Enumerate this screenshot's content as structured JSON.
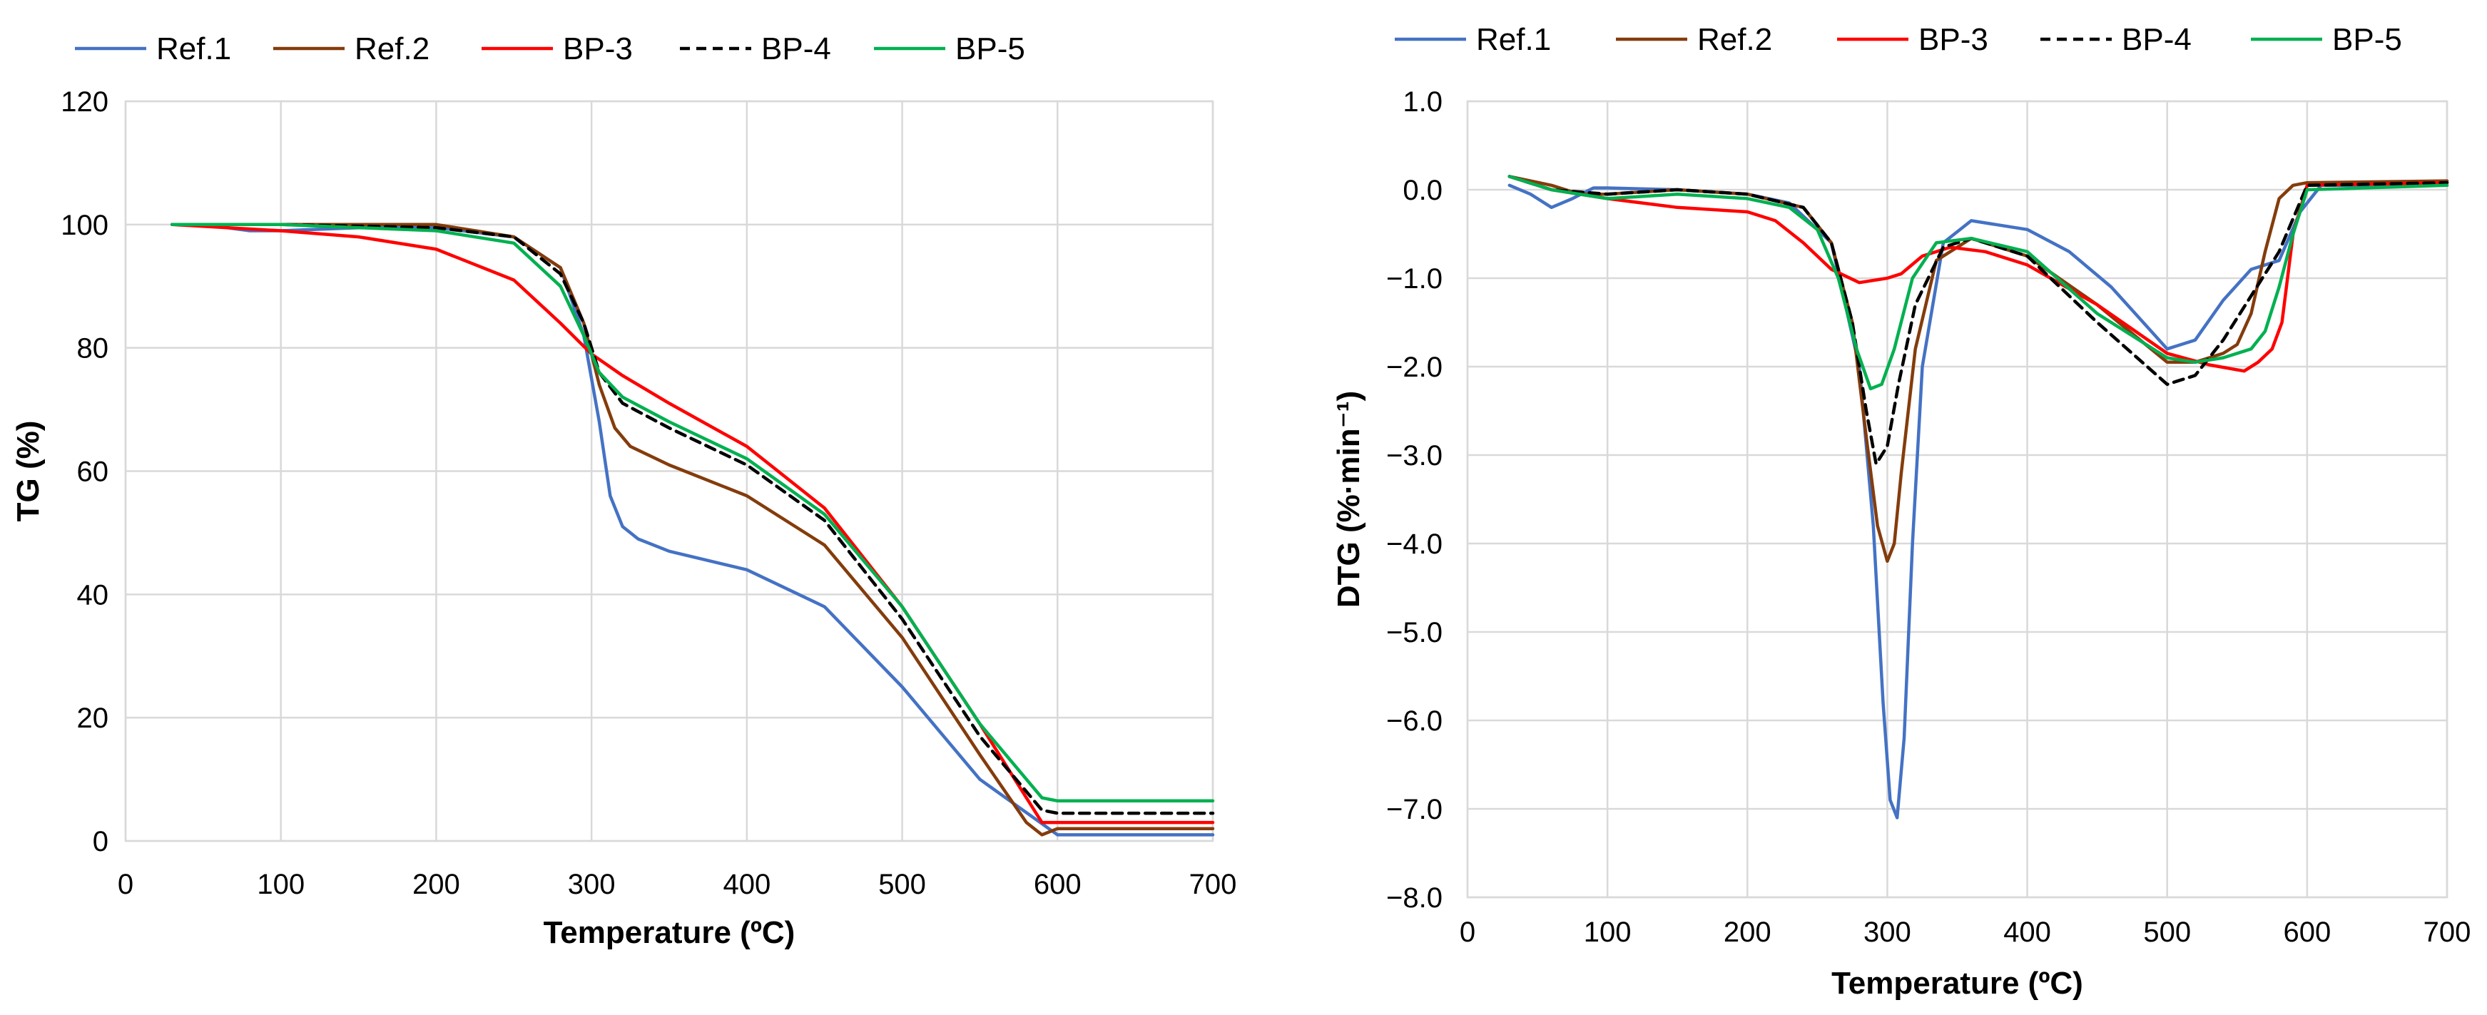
{
  "chart_data": [
    {
      "type": "line",
      "title": "",
      "xlabel": "Temperature (ºC)",
      "ylabel": "TG (%)",
      "xlim": [
        0,
        700
      ],
      "ylim": [
        0,
        120
      ],
      "xticks": [
        0,
        100,
        200,
        300,
        400,
        500,
        600,
        700
      ],
      "yticks": [
        0,
        20,
        40,
        60,
        80,
        100,
        120
      ],
      "grid": true,
      "legend_position": "top",
      "series": [
        {
          "name": "Ref.1",
          "color": "#4472c4",
          "dash": "solid",
          "x": [
            30,
            50,
            80,
            100,
            150,
            200,
            250,
            280,
            295,
            305,
            312,
            320,
            330,
            350,
            400,
            450,
            500,
            550,
            600,
            700
          ],
          "y": [
            100,
            100,
            99,
            99,
            99.5,
            99.5,
            98,
            93,
            82,
            68,
            56,
            51,
            49,
            47,
            44,
            38,
            25,
            10,
            1,
            1
          ]
        },
        {
          "name": "Ref.2",
          "color": "#843c0c",
          "dash": "solid",
          "x": [
            30,
            100,
            150,
            200,
            250,
            280,
            295,
            305,
            315,
            325,
            350,
            400,
            450,
            500,
            550,
            580,
            590,
            600,
            700
          ],
          "y": [
            100,
            100,
            100,
            100,
            98,
            93,
            84,
            74,
            67,
            64,
            61,
            56,
            48,
            33,
            14,
            3,
            1,
            2,
            2
          ]
        },
        {
          "name": "BP-3",
          "color": "#ff0000",
          "dash": "solid",
          "x": [
            30,
            100,
            150,
            200,
            250,
            280,
            300,
            320,
            350,
            400,
            450,
            500,
            550,
            590,
            600,
            700
          ],
          "y": [
            100,
            99,
            98,
            96,
            91,
            84,
            79,
            75.5,
            71,
            64,
            54,
            38,
            19,
            3,
            3,
            3
          ]
        },
        {
          "name": "BP-4",
          "color": "#000000",
          "dash": "dashed",
          "x": [
            30,
            100,
            200,
            250,
            280,
            295,
            305,
            320,
            350,
            400,
            450,
            500,
            550,
            590,
            600,
            700
          ],
          "y": [
            100,
            100,
            99.5,
            98,
            92,
            84,
            76,
            71,
            67,
            61,
            52,
            36,
            17,
            5,
            4.5,
            4.5
          ]
        },
        {
          "name": "BP-5",
          "color": "#00b050",
          "dash": "solid",
          "x": [
            30,
            100,
            150,
            200,
            250,
            280,
            295,
            305,
            320,
            350,
            400,
            450,
            500,
            550,
            590,
            600,
            700
          ],
          "y": [
            100,
            100,
            99.5,
            99,
            97,
            90,
            82,
            76,
            72,
            68,
            62,
            53,
            38,
            19,
            7,
            6.5,
            6.5
          ]
        }
      ]
    },
    {
      "type": "line",
      "title": "",
      "xlabel": "Temperature (ºC)",
      "ylabel": "DTG (%·min⁻¹)",
      "xlim": [
        0,
        700
      ],
      "ylim": [
        -8,
        1
      ],
      "xticks": [
        0,
        100,
        200,
        300,
        400,
        500,
        600,
        700
      ],
      "yticks": [
        1,
        0,
        -1,
        -2,
        -3,
        -4,
        -5,
        -6,
        -7,
        -8
      ],
      "ytick_labels": [
        "1.0",
        "0.0",
        "−1.0",
        "−2.0",
        "−3.0",
        "−4.0",
        "−5.0",
        "−6.0",
        "−7.0",
        "−8.0"
      ],
      "grid": true,
      "legend_position": "top",
      "series": [
        {
          "name": "Ref.1",
          "color": "#4472c4",
          "dash": "solid",
          "x": [
            30,
            45,
            60,
            75,
            90,
            100,
            150,
            200,
            230,
            260,
            280,
            290,
            297,
            302,
            307,
            312,
            318,
            325,
            340,
            360,
            400,
            430,
            460,
            480,
            500,
            520,
            540,
            560,
            580,
            595,
            610,
            700
          ],
          "y": [
            0.05,
            -0.05,
            -0.2,
            -0.1,
            0.02,
            0.02,
            0,
            -0.05,
            -0.15,
            -0.6,
            -2.0,
            -3.8,
            -5.8,
            -6.9,
            -7.1,
            -6.2,
            -4.0,
            -2.0,
            -0.6,
            -0.35,
            -0.45,
            -0.7,
            -1.1,
            -1.45,
            -1.8,
            -1.7,
            -1.25,
            -0.9,
            -0.8,
            -0.25,
            0.05,
            0.05
          ]
        },
        {
          "name": "Ref.2",
          "color": "#843c0c",
          "dash": "solid",
          "x": [
            30,
            60,
            80,
            100,
            150,
            200,
            240,
            260,
            275,
            285,
            293,
            300,
            305,
            310,
            320,
            335,
            360,
            400,
            450,
            500,
            520,
            540,
            550,
            560,
            570,
            580,
            590,
            600,
            700
          ],
          "y": [
            0.15,
            0.05,
            -0.05,
            -0.05,
            0,
            -0.05,
            -0.2,
            -0.6,
            -1.5,
            -2.8,
            -3.8,
            -4.2,
            -4.0,
            -3.2,
            -1.8,
            -0.8,
            -0.55,
            -0.75,
            -1.3,
            -1.95,
            -1.95,
            -1.85,
            -1.75,
            -1.4,
            -0.7,
            -0.1,
            0.05,
            0.08,
            0.1
          ]
        },
        {
          "name": "BP-3",
          "color": "#ff0000",
          "dash": "solid",
          "x": [
            30,
            60,
            100,
            150,
            200,
            220,
            240,
            260,
            280,
            300,
            310,
            325,
            345,
            370,
            400,
            450,
            500,
            530,
            555,
            565,
            575,
            582,
            590,
            600,
            700
          ],
          "y": [
            0.15,
            0,
            -0.1,
            -0.2,
            -0.25,
            -0.35,
            -0.6,
            -0.9,
            -1.05,
            -1.0,
            -0.95,
            -0.75,
            -0.65,
            -0.7,
            -0.85,
            -1.3,
            -1.85,
            -1.98,
            -2.05,
            -1.95,
            -1.8,
            -1.5,
            -0.5,
            0.05,
            0.08
          ]
        },
        {
          "name": "BP-4",
          "color": "#000000",
          "dash": "dashed",
          "x": [
            30,
            60,
            100,
            150,
            200,
            240,
            260,
            275,
            285,
            292,
            300,
            308,
            320,
            340,
            360,
            400,
            450,
            500,
            520,
            540,
            560,
            580,
            600,
            700
          ],
          "y": [
            0.15,
            0,
            -0.05,
            0,
            -0.05,
            -0.2,
            -0.6,
            -1.5,
            -2.5,
            -3.1,
            -2.9,
            -2.2,
            -1.3,
            -0.65,
            -0.55,
            -0.75,
            -1.5,
            -2.2,
            -2.1,
            -1.7,
            -1.2,
            -0.7,
            0.05,
            0.08
          ]
        },
        {
          "name": "BP-5",
          "color": "#00b050",
          "dash": "solid",
          "x": [
            30,
            60,
            100,
            150,
            200,
            230,
            250,
            265,
            278,
            288,
            296,
            305,
            318,
            335,
            360,
            400,
            450,
            500,
            520,
            540,
            560,
            570,
            580,
            590,
            600,
            700
          ],
          "y": [
            0.15,
            0,
            -0.1,
            -0.05,
            -0.1,
            -0.2,
            -0.45,
            -1.0,
            -1.8,
            -2.25,
            -2.2,
            -1.8,
            -1.0,
            -0.6,
            -0.55,
            -0.7,
            -1.4,
            -1.9,
            -1.95,
            -1.9,
            -1.8,
            -1.6,
            -1.1,
            -0.5,
            0,
            0.05
          ]
        }
      ]
    }
  ]
}
